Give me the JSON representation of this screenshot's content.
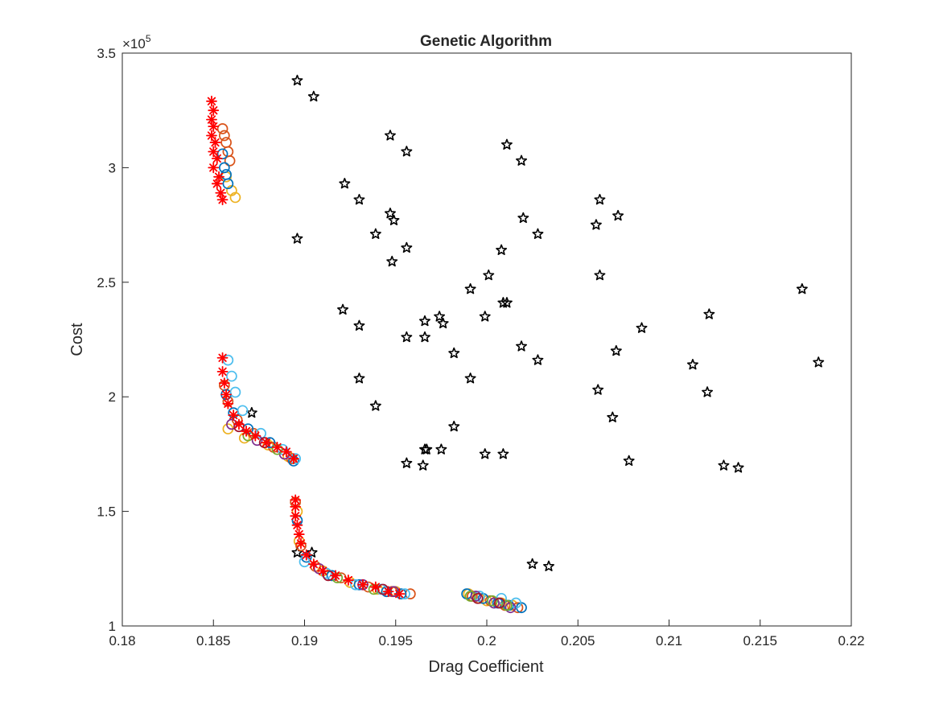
{
  "chart_data": {
    "type": "scatter",
    "title": "Genetic Algorithm",
    "xlabel": "Drag Coefficient",
    "ylabel": "Cost",
    "y_exponent_label": "×10",
    "y_exponent_power": "5",
    "xlim": [
      0.18,
      0.22
    ],
    "ylim": [
      100000,
      350000
    ],
    "y_scale_factor": 100000,
    "grid": false,
    "legend": "none",
    "x_ticks": [
      0.18,
      0.185,
      0.19,
      0.195,
      0.2,
      0.205,
      0.21,
      0.215,
      0.22
    ],
    "x_tick_labels": [
      "0.18",
      "0.185",
      "0.19",
      "0.195",
      "0.2",
      "0.205",
      "0.21",
      "0.215",
      "0.22"
    ],
    "y_ticks": [
      100000,
      150000,
      200000,
      250000,
      300000,
      350000
    ],
    "y_tick_labels": [
      "1",
      "1.5",
      "2",
      "2.5",
      "3",
      "3.5"
    ],
    "colors": {
      "initial_population": "#000000",
      "final_front": "#ff0000",
      "gen_blue": "#0072bd",
      "gen_orange": "#d95319",
      "gen_yellow": "#edb120",
      "gen_purple": "#7e2f8e",
      "gen_green": "#77ac30",
      "gen_cyan": "#4dbeee",
      "gen_darkred": "#a2142f"
    },
    "series": [
      {
        "marker": "pentagram",
        "color": "#000000",
        "points": [
          [
            0.1896,
            338000
          ],
          [
            0.1905,
            331000
          ],
          [
            0.1947,
            314000
          ],
          [
            0.1956,
            307000
          ],
          [
            0.2011,
            310000
          ],
          [
            0.2019,
            303000
          ],
          [
            0.1922,
            293000
          ],
          [
            0.193,
            286000
          ],
          [
            0.1947,
            280000
          ],
          [
            0.1949,
            277000
          ],
          [
            0.2062,
            286000
          ],
          [
            0.206,
            275000
          ],
          [
            0.2072,
            279000
          ],
          [
            0.202,
            278000
          ],
          [
            0.2028,
            271000
          ],
          [
            0.1896,
            269000
          ],
          [
            0.1939,
            271000
          ],
          [
            0.1956,
            265000
          ],
          [
            0.2008,
            264000
          ],
          [
            0.1948,
            259000
          ],
          [
            0.2062,
            253000
          ],
          [
            0.2001,
            253000
          ],
          [
            0.1991,
            247000
          ],
          [
            0.2009,
            241000
          ],
          [
            0.2011,
            241000
          ],
          [
            0.2173,
            247000
          ],
          [
            0.1921,
            238000
          ],
          [
            0.193,
            231000
          ],
          [
            0.1974,
            235000
          ],
          [
            0.1976,
            232000
          ],
          [
            0.1966,
            233000
          ],
          [
            0.1999,
            235000
          ],
          [
            0.2122,
            236000
          ],
          [
            0.2085,
            230000
          ],
          [
            0.1956,
            226000
          ],
          [
            0.1966,
            226000
          ],
          [
            0.2019,
            222000
          ],
          [
            0.1982,
            219000
          ],
          [
            0.2071,
            220000
          ],
          [
            0.2028,
            216000
          ],
          [
            0.2113,
            214000
          ],
          [
            0.2182,
            215000
          ],
          [
            0.193,
            208000
          ],
          [
            0.1991,
            208000
          ],
          [
            0.2061,
            203000
          ],
          [
            0.2121,
            202000
          ],
          [
            0.1939,
            196000
          ],
          [
            0.1871,
            193000
          ],
          [
            0.2069,
            191000
          ],
          [
            0.1982,
            187000
          ],
          [
            0.1966,
            177000
          ],
          [
            0.1967,
            177000
          ],
          [
            0.1975,
            177000
          ],
          [
            0.1999,
            175000
          ],
          [
            0.2009,
            175000
          ],
          [
            0.2078,
            172000
          ],
          [
            0.1956,
            171000
          ],
          [
            0.1965,
            170000
          ],
          [
            0.213,
            170000
          ],
          [
            0.2138,
            169000
          ],
          [
            0.1896,
            132000
          ],
          [
            0.1904,
            132000
          ],
          [
            0.2025,
            127000
          ],
          [
            0.2034,
            126000
          ]
        ]
      },
      {
        "marker": "circle",
        "color": "#edb120",
        "points": [
          [
            0.1857,
            296000
          ],
          [
            0.186,
            290000
          ],
          [
            0.1862,
            287000
          ],
          [
            0.1858,
            186000
          ],
          [
            0.1867,
            182000
          ],
          [
            0.188,
            179000
          ],
          [
            0.1891,
            174000
          ],
          [
            0.1896,
            150000
          ],
          [
            0.1897,
            137000
          ],
          [
            0.191,
            124000
          ],
          [
            0.1925,
            119000
          ],
          [
            0.194,
            116000
          ],
          [
            0.195,
            115000
          ],
          [
            0.199,
            114000
          ],
          [
            0.1996,
            112000
          ],
          [
            0.2,
            111000
          ],
          [
            0.2008,
            110000
          ],
          [
            0.2014,
            109000
          ]
        ]
      },
      {
        "marker": "circle",
        "color": "#d95319",
        "points": [
          [
            0.1855,
            317000
          ],
          [
            0.1856,
            314000
          ],
          [
            0.1857,
            311000
          ],
          [
            0.1858,
            307000
          ],
          [
            0.1859,
            303000
          ],
          [
            0.1856,
            205000
          ],
          [
            0.1858,
            198000
          ],
          [
            0.1863,
            190000
          ],
          [
            0.1872,
            184000
          ],
          [
            0.1883,
            178000
          ],
          [
            0.1893,
            173000
          ],
          [
            0.1895,
            154000
          ],
          [
            0.1898,
            135000
          ],
          [
            0.1906,
            126000
          ],
          [
            0.192,
            121000
          ],
          [
            0.1935,
            117000
          ],
          [
            0.1948,
            115000
          ],
          [
            0.1958,
            114000
          ],
          [
            0.1992,
            113000
          ],
          [
            0.2002,
            111000
          ],
          [
            0.201,
            109000
          ],
          [
            0.2017,
            108000
          ]
        ]
      },
      {
        "marker": "circle",
        "color": "#0072bd",
        "points": [
          [
            0.1855,
            306000
          ],
          [
            0.1856,
            300000
          ],
          [
            0.1857,
            297000
          ],
          [
            0.1858,
            293000
          ],
          [
            0.1857,
            201000
          ],
          [
            0.1861,
            193000
          ],
          [
            0.1869,
            186000
          ],
          [
            0.1881,
            180000
          ],
          [
            0.1894,
            172000
          ],
          [
            0.1896,
            146000
          ],
          [
            0.1901,
            130000
          ],
          [
            0.1915,
            122000
          ],
          [
            0.193,
            118000
          ],
          [
            0.1945,
            115000
          ],
          [
            0.1953,
            114000
          ],
          [
            0.1989,
            114000
          ],
          [
            0.1998,
            112000
          ],
          [
            0.2006,
            110000
          ],
          [
            0.2012,
            109000
          ],
          [
            0.2019,
            108000
          ]
        ]
      },
      {
        "marker": "circle",
        "color": "#4dbeee",
        "points": [
          [
            0.1858,
            216000
          ],
          [
            0.186,
            209000
          ],
          [
            0.1862,
            202000
          ],
          [
            0.1866,
            194000
          ],
          [
            0.1876,
            184000
          ],
          [
            0.1888,
            177000
          ],
          [
            0.1895,
            173000
          ],
          [
            0.19,
            128000
          ],
          [
            0.1912,
            123000
          ],
          [
            0.1928,
            118000
          ],
          [
            0.1942,
            116000
          ],
          [
            0.1955,
            114000
          ],
          [
            0.1996,
            113000
          ],
          [
            0.2008,
            112000
          ],
          [
            0.2016,
            110000
          ]
        ]
      },
      {
        "marker": "circle",
        "color": "#7e2f8e",
        "points": [
          [
            0.186,
            188000
          ],
          [
            0.1874,
            181000
          ],
          [
            0.1889,
            175000
          ],
          [
            0.1908,
            125000
          ],
          [
            0.1932,
            118000
          ],
          [
            0.1949,
            115000
          ],
          [
            0.1994,
            113000
          ],
          [
            0.2004,
            110000
          ],
          [
            0.2013,
            108000
          ]
        ]
      },
      {
        "marker": "circle",
        "color": "#77ac30",
        "points": [
          [
            0.1869,
            183000
          ],
          [
            0.1885,
            177000
          ],
          [
            0.1918,
            121000
          ],
          [
            0.1938,
            116000
          ],
          [
            0.1991,
            113000
          ],
          [
            0.2003,
            111000
          ],
          [
            0.2011,
            109000
          ]
        ]
      },
      {
        "marker": "circle",
        "color": "#a2142f",
        "points": [
          [
            0.1864,
            187000
          ],
          [
            0.1878,
            180000
          ],
          [
            0.1913,
            122000
          ],
          [
            0.1943,
            116000
          ],
          [
            0.1995,
            112000
          ],
          [
            0.2007,
            110000
          ]
        ]
      },
      {
        "marker": "asterisk",
        "color": "#ff0000",
        "points": [
          [
            0.1849,
            329000
          ],
          [
            0.185,
            325000
          ],
          [
            0.1849,
            321000
          ],
          [
            0.185,
            318000
          ],
          [
            0.1849,
            314000
          ],
          [
            0.1851,
            311000
          ],
          [
            0.185,
            307000
          ],
          [
            0.1852,
            304000
          ],
          [
            0.185,
            300000
          ],
          [
            0.1853,
            296000
          ],
          [
            0.1852,
            293000
          ],
          [
            0.1854,
            289000
          ],
          [
            0.1855,
            286000
          ],
          [
            0.1855,
            217000
          ],
          [
            0.1855,
            211000
          ],
          [
            0.1856,
            206000
          ],
          [
            0.1857,
            201000
          ],
          [
            0.1858,
            197000
          ],
          [
            0.1861,
            192000
          ],
          [
            0.1864,
            188000
          ],
          [
            0.1868,
            185000
          ],
          [
            0.1873,
            183000
          ],
          [
            0.1879,
            180000
          ],
          [
            0.1885,
            178000
          ],
          [
            0.189,
            176000
          ],
          [
            0.1894,
            173000
          ],
          [
            0.1895,
            155000
          ],
          [
            0.1895,
            152000
          ],
          [
            0.1895,
            148000
          ],
          [
            0.1896,
            144000
          ],
          [
            0.1897,
            140000
          ],
          [
            0.1898,
            136000
          ],
          [
            0.1901,
            131000
          ],
          [
            0.1905,
            127000
          ],
          [
            0.191,
            124000
          ],
          [
            0.1917,
            122000
          ],
          [
            0.1924,
            120000
          ],
          [
            0.1932,
            118000
          ],
          [
            0.1939,
            117000
          ],
          [
            0.1946,
            115000
          ],
          [
            0.1952,
            114000
          ]
        ]
      }
    ]
  }
}
